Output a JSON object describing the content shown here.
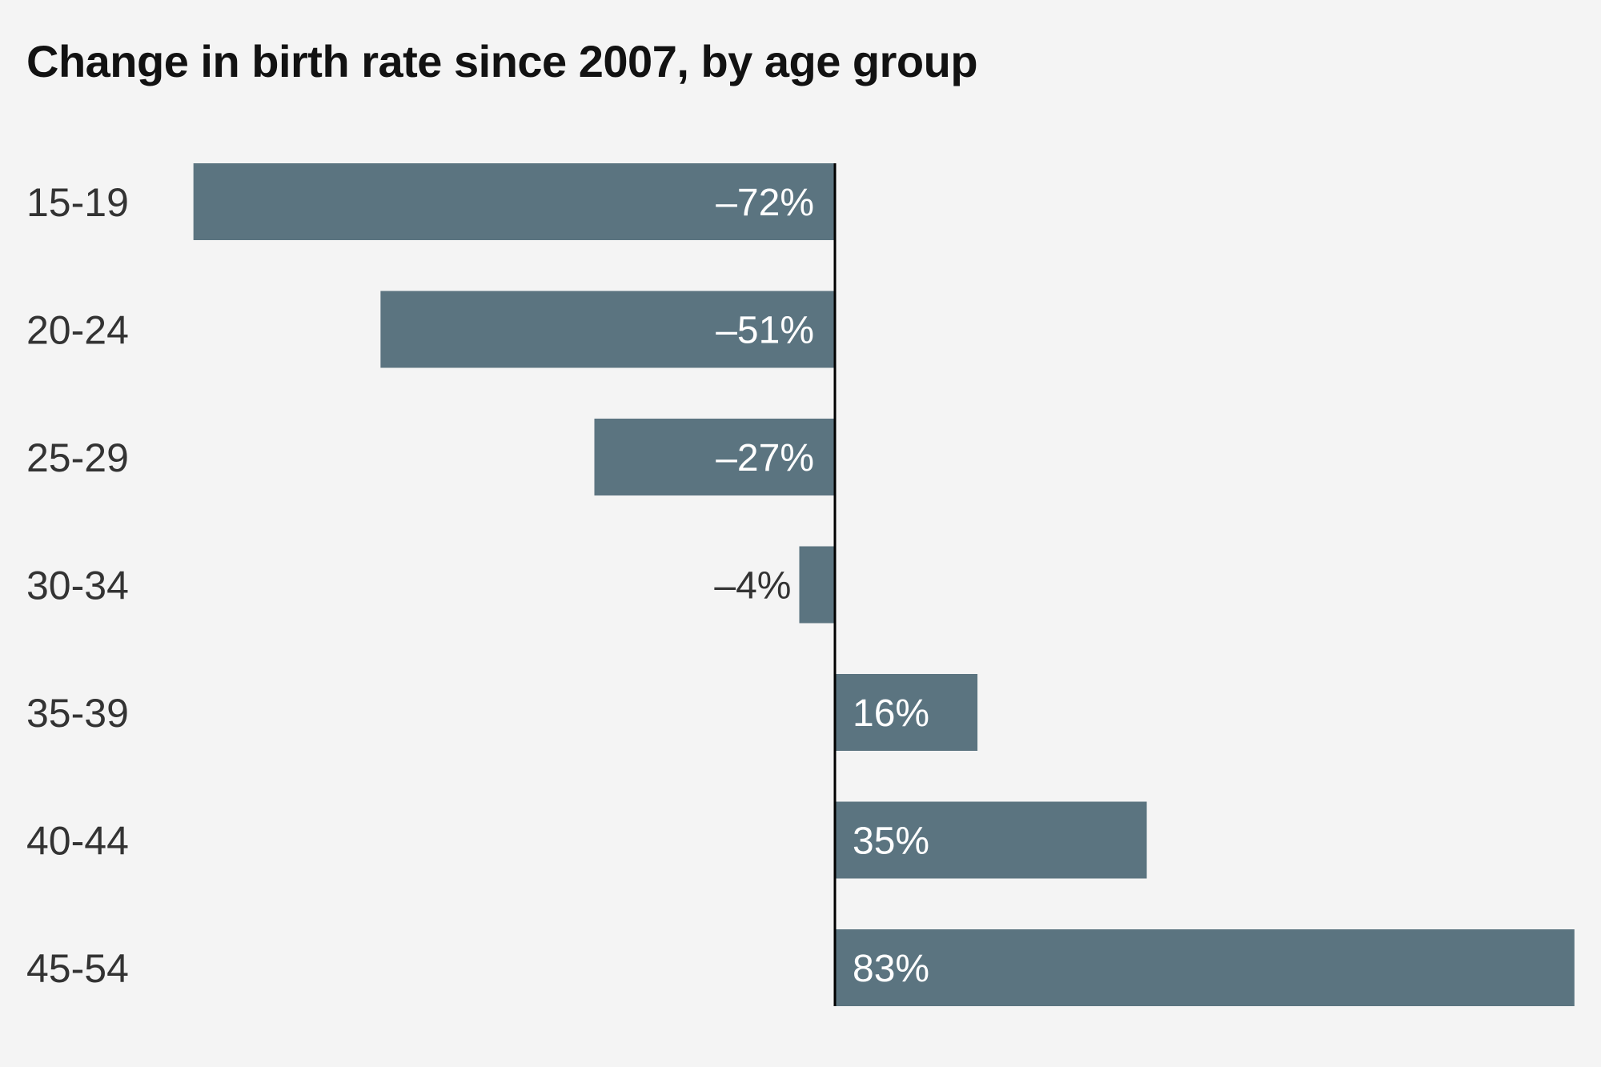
{
  "chart_data": {
    "type": "bar",
    "orientation": "horizontal",
    "title": "Change in birth rate since 2007, by age group",
    "xlabel": "",
    "ylabel": "",
    "categories": [
      "15-19",
      "20-24",
      "25-29",
      "30-34",
      "35-39",
      "40-44",
      "45-54"
    ],
    "values": [
      -72,
      -51,
      -27,
      -4,
      16,
      35,
      83
    ],
    "value_labels": [
      "–72%",
      "–51%",
      "–27%",
      "–4%",
      "16%",
      "35%",
      "83%"
    ],
    "unit": "%",
    "xlim": [
      -72,
      83
    ],
    "grid": false,
    "legend": "none",
    "colors": {
      "bar": "#5b7480",
      "background": "#f4f4f4",
      "axis": "#000000",
      "label_inside": "#ffffff",
      "label_outside": "#333333"
    }
  }
}
